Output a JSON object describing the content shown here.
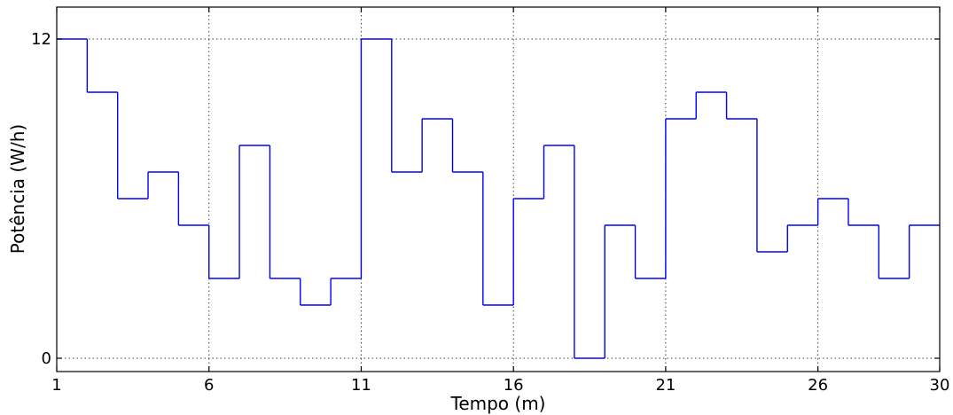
{
  "chart_data": {
    "type": "line",
    "drawstyle": "steps-post",
    "xlabel": "Tempo (m)",
    "ylabel": "Potência (W/h)",
    "xlim": [
      1,
      30
    ],
    "ylim": [
      -0.5,
      13.2
    ],
    "grid": true,
    "line_color": "#0000ff",
    "x_ticks": [
      1,
      6,
      11,
      16,
      21,
      26,
      30
    ],
    "y_ticks": [
      0,
      12
    ],
    "x": [
      1,
      2,
      3,
      4,
      5,
      6,
      7,
      8,
      9,
      10,
      11,
      12,
      13,
      14,
      15,
      16,
      17,
      18,
      19,
      20,
      21,
      22,
      23,
      24,
      25,
      26,
      27,
      28,
      29,
      30
    ],
    "values": [
      12,
      10,
      6,
      7,
      5,
      3,
      8,
      3,
      2,
      3,
      12,
      7,
      9,
      7,
      2,
      6,
      8,
      0,
      5,
      3,
      9,
      10,
      9,
      4,
      5,
      6,
      5,
      3,
      5,
      5
    ]
  }
}
